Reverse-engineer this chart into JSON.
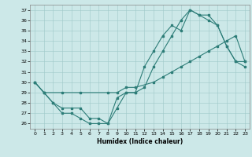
{
  "title": "",
  "xlabel": "Humidex (Indice chaleur)",
  "background_color": "#cce8e8",
  "line_color": "#2d7d78",
  "xlim": [
    -0.5,
    23.5
  ],
  "ylim": [
    25.5,
    37.5
  ],
  "yticks": [
    26,
    27,
    28,
    29,
    30,
    31,
    32,
    33,
    34,
    35,
    36,
    37
  ],
  "xticks": [
    0,
    1,
    2,
    3,
    4,
    5,
    6,
    7,
    8,
    9,
    10,
    11,
    12,
    13,
    14,
    15,
    16,
    17,
    18,
    19,
    20,
    21,
    22,
    23
  ],
  "series1_x": [
    0,
    1,
    2,
    3,
    4,
    5,
    6,
    7,
    8,
    9,
    10,
    11,
    12,
    13,
    14,
    15,
    16,
    17,
    18,
    19,
    20,
    21,
    22,
    23
  ],
  "series1_y": [
    30.0,
    29.0,
    28.0,
    27.0,
    27.0,
    26.5,
    26.0,
    26.0,
    26.0,
    27.5,
    29.0,
    29.0,
    31.5,
    33.0,
    34.5,
    35.5,
    35.0,
    37.0,
    36.5,
    36.0,
    35.5,
    33.5,
    32.0,
    32.0
  ],
  "series2_x": [
    0,
    1,
    2,
    3,
    4,
    5,
    6,
    7,
    8,
    9,
    10,
    11,
    12,
    13,
    14,
    15,
    16,
    17,
    18,
    19,
    20,
    21,
    22,
    23
  ],
  "series2_y": [
    30.0,
    29.0,
    28.0,
    27.5,
    27.5,
    27.5,
    26.5,
    26.5,
    26.0,
    28.5,
    29.0,
    29.0,
    29.5,
    31.5,
    33.0,
    34.5,
    36.0,
    37.0,
    36.5,
    36.5,
    35.5,
    33.5,
    32.0,
    31.5
  ],
  "series3_x": [
    0,
    1,
    3,
    5,
    8,
    9,
    10,
    11,
    13,
    14,
    15,
    16,
    17,
    18,
    19,
    20,
    21,
    22,
    23
  ],
  "series3_y": [
    30.0,
    29.0,
    29.0,
    29.0,
    29.0,
    29.0,
    29.5,
    29.5,
    30.0,
    30.5,
    31.0,
    31.5,
    32.0,
    32.5,
    33.0,
    33.5,
    34.0,
    34.5,
    32.0
  ],
  "figsize": [
    3.2,
    2.0
  ],
  "dpi": 100
}
